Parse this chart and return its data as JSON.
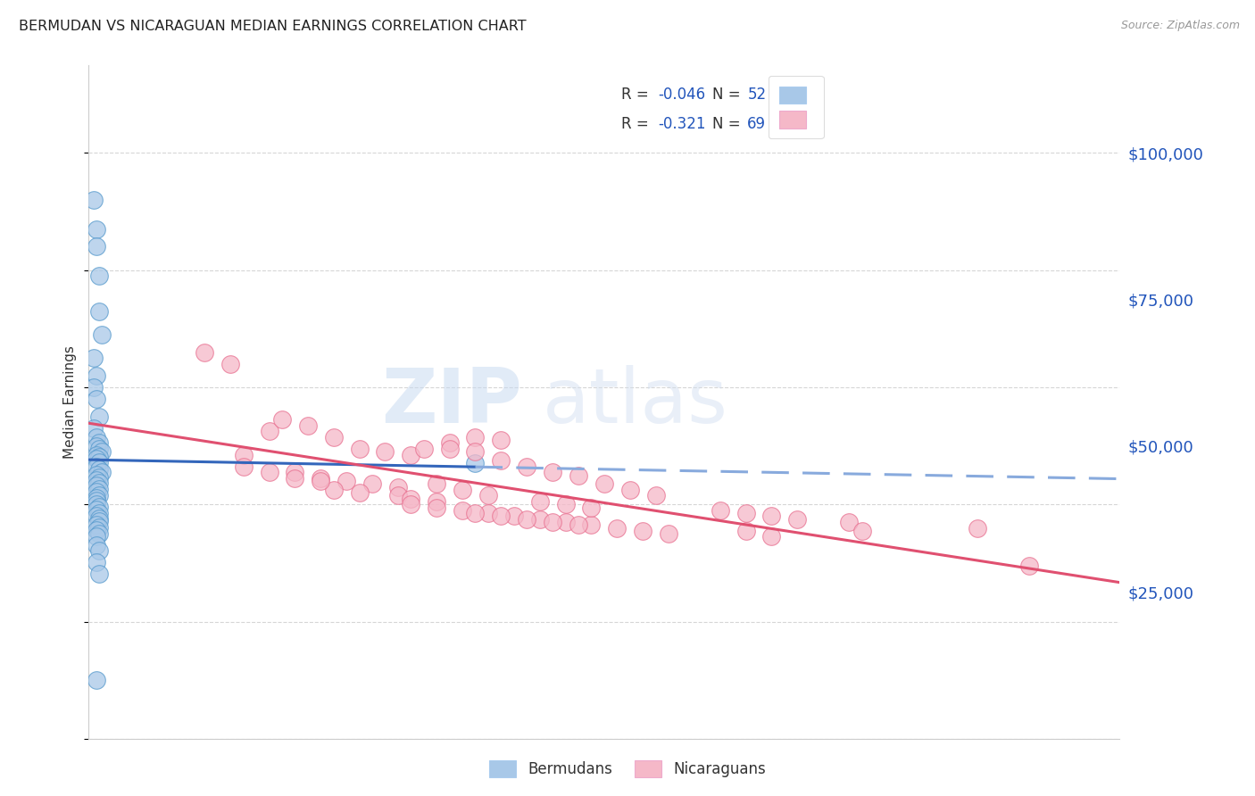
{
  "title": "BERMUDAN VS NICARAGUAN MEDIAN EARNINGS CORRELATION CHART",
  "source": "Source: ZipAtlas.com",
  "ylabel": "Median Earnings",
  "watermark": "ZIPatlas",
  "legend_line1_gray": "R = ",
  "legend_line1_blue": "-0.046",
  "legend_line1_gray2": "   N = ",
  "legend_line1_blue2": "52",
  "legend_line2_gray": "R =  ",
  "legend_line2_blue": "-0.321",
  "legend_line2_gray2": "   N = ",
  "legend_line2_blue2": "69",
  "ytick_labels": [
    "$25,000",
    "$50,000",
    "$75,000",
    "$100,000"
  ],
  "ytick_values": [
    25000,
    50000,
    75000,
    100000
  ],
  "xlim": [
    0.0,
    0.4
  ],
  "ylim": [
    0,
    115000
  ],
  "blue_scatter_color": "#a8c8e8",
  "pink_scatter_color": "#f5b8c8",
  "blue_scatter_edge": "#5599cc",
  "pink_scatter_edge": "#e87090",
  "blue_line_color": "#3366bb",
  "pink_line_color": "#e05070",
  "dashed_line_color": "#88aadd",
  "background_color": "#ffffff",
  "grid_color": "#cccccc",
  "title_color": "#222222",
  "right_label_color": "#2255bb",
  "legend_R_N_color": "#2255bb",
  "legend_label_color": "#444444",
  "bermudans_x": [
    0.002,
    0.003,
    0.003,
    0.004,
    0.004,
    0.005,
    0.002,
    0.003,
    0.002,
    0.003,
    0.004,
    0.002,
    0.003,
    0.004,
    0.003,
    0.004,
    0.005,
    0.003,
    0.004,
    0.003,
    0.004,
    0.003,
    0.004,
    0.005,
    0.003,
    0.004,
    0.003,
    0.004,
    0.003,
    0.004,
    0.003,
    0.004,
    0.003,
    0.003,
    0.15,
    0.003,
    0.004,
    0.003,
    0.004,
    0.003,
    0.004,
    0.004,
    0.003,
    0.004,
    0.003,
    0.004,
    0.003,
    0.003,
    0.004,
    0.003,
    0.004,
    0.003
  ],
  "bermudans_y": [
    92000,
    87000,
    84000,
    79000,
    73000,
    69000,
    65000,
    62000,
    60000,
    58000,
    55000,
    53000,
    51500,
    50500,
    50000,
    49500,
    49000,
    48500,
    48200,
    47800,
    47200,
    46500,
    46000,
    45500,
    45100,
    44600,
    44100,
    43700,
    43200,
    42700,
    42200,
    41600,
    41100,
    40600,
    47000,
    40100,
    39600,
    39100,
    38600,
    38100,
    37600,
    37100,
    36600,
    36100,
    35600,
    35100,
    34600,
    33100,
    32100,
    30100,
    28100,
    10100
  ],
  "nicaraguans_x": [
    0.045,
    0.055,
    0.06,
    0.07,
    0.075,
    0.085,
    0.095,
    0.105,
    0.115,
    0.125,
    0.13,
    0.14,
    0.15,
    0.16,
    0.08,
    0.09,
    0.1,
    0.11,
    0.12,
    0.095,
    0.105,
    0.12,
    0.125,
    0.135,
    0.125,
    0.135,
    0.145,
    0.155,
    0.165,
    0.175,
    0.185,
    0.195,
    0.205,
    0.215,
    0.225,
    0.175,
    0.185,
    0.195,
    0.135,
    0.145,
    0.155,
    0.15,
    0.16,
    0.17,
    0.18,
    0.19,
    0.255,
    0.265,
    0.345,
    0.365,
    0.245,
    0.255,
    0.265,
    0.275,
    0.295,
    0.06,
    0.07,
    0.08,
    0.09,
    0.14,
    0.15,
    0.16,
    0.17,
    0.18,
    0.19,
    0.2,
    0.21,
    0.22,
    0.3
  ],
  "nicaraguans_y": [
    66000,
    64000,
    48500,
    52500,
    54500,
    53500,
    51500,
    49500,
    49000,
    48500,
    49500,
    50500,
    51500,
    51000,
    45500,
    44500,
    44000,
    43500,
    43000,
    42500,
    42000,
    41500,
    41000,
    40500,
    40000,
    39500,
    39000,
    38500,
    38000,
    37500,
    37000,
    36500,
    36000,
    35500,
    35000,
    40500,
    40000,
    39500,
    43500,
    42500,
    41500,
    38500,
    38000,
    37500,
    37000,
    36500,
    35500,
    34500,
    36000,
    29500,
    39000,
    38500,
    38000,
    37500,
    37000,
    46500,
    45500,
    44500,
    44000,
    49500,
    49000,
    47500,
    46500,
    45500,
    45000,
    43500,
    42500,
    41500,
    35500
  ]
}
